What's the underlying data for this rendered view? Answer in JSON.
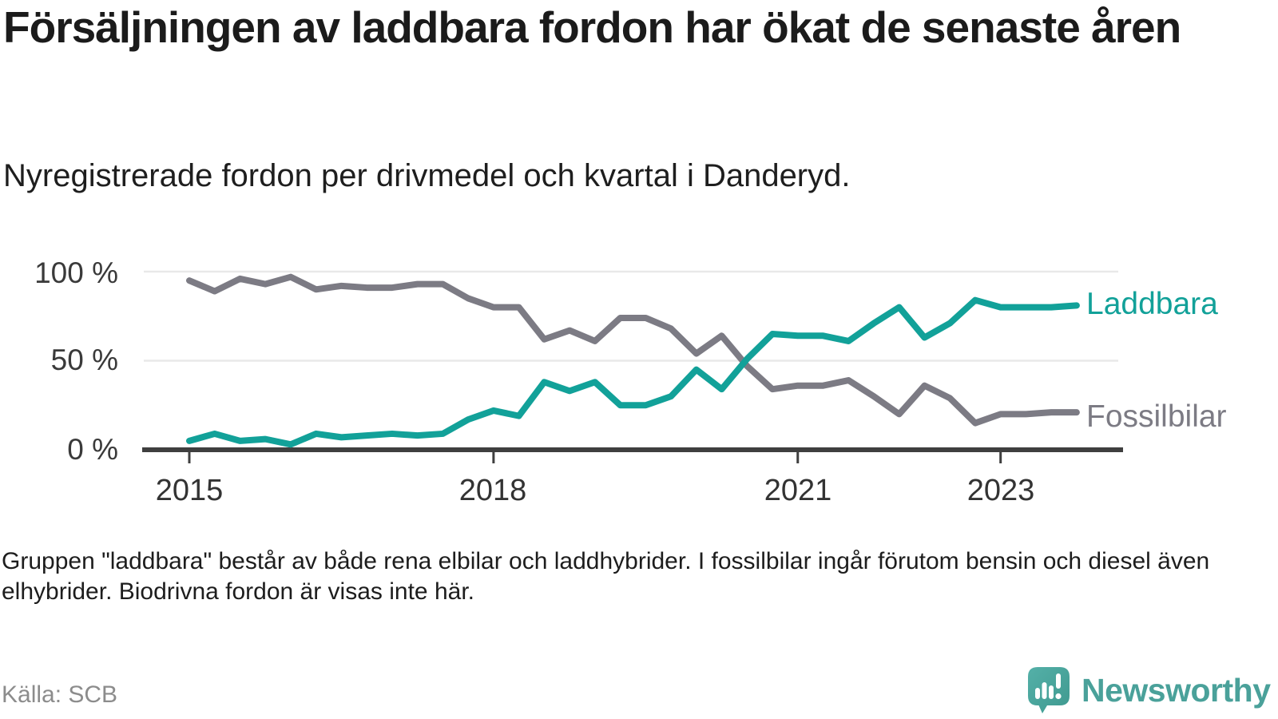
{
  "title": "Försäljningen av laddbara fordon har ökat de senaste åren",
  "subtitle": "Nyregistrerade fordon per drivmedel och kvartal i Danderyd.",
  "footnote": "Gruppen \"laddbara\" består av både rena elbilar och laddhybrider. I fossilbilar ingår förutom bensin och diesel även elhybrider. Biodrivna fordon är visas inte här.",
  "source": "Källa: SCB",
  "branding": {
    "wordmark": "Newsworthy",
    "wordmark_color": "#4aa19a",
    "logo_icon": "newsworthy-speech-bubble-barchart-icon",
    "logo_color": "#4ba8a0"
  },
  "chart_data": {
    "type": "line",
    "frequency": "quarterly",
    "x_start": "2015 Q1",
    "x_end": "2023 Q4",
    "ylim": [
      0,
      100
    ],
    "grid": "horizontal-only",
    "legend_position": "right-end-of-lines",
    "y_tick_labels": [
      "100 %",
      "50 %",
      "0 %"
    ],
    "y_gridline_values": [
      100,
      50
    ],
    "x_tick_labels": [
      "2015",
      "2018",
      "2021",
      "2023"
    ],
    "x_tick_quarter_index": [
      0,
      12,
      24,
      32
    ],
    "style": {
      "gridline_color": "#e9e9e9",
      "axis_color": "#3f3f3f",
      "line_width": 8
    },
    "series": [
      {
        "name": "Laddbara",
        "color": "#12a199",
        "values": [
          5,
          9,
          5,
          6,
          3,
          9,
          7,
          8,
          9,
          8,
          9,
          17,
          22,
          19,
          38,
          33,
          38,
          25,
          25,
          30,
          45,
          34,
          51,
          65,
          64,
          64,
          61,
          71,
          80,
          63,
          71,
          84,
          80,
          80,
          80,
          81
        ]
      },
      {
        "name": "Fossilbilar",
        "color": "#7c7b84",
        "values": [
          95,
          89,
          96,
          93,
          97,
          90,
          92,
          91,
          91,
          93,
          93,
          85,
          80,
          80,
          62,
          67,
          61,
          74,
          74,
          68,
          54,
          64,
          47,
          34,
          36,
          36,
          39,
          30,
          20,
          36,
          29,
          15,
          20,
          20,
          21,
          21
        ]
      }
    ]
  }
}
